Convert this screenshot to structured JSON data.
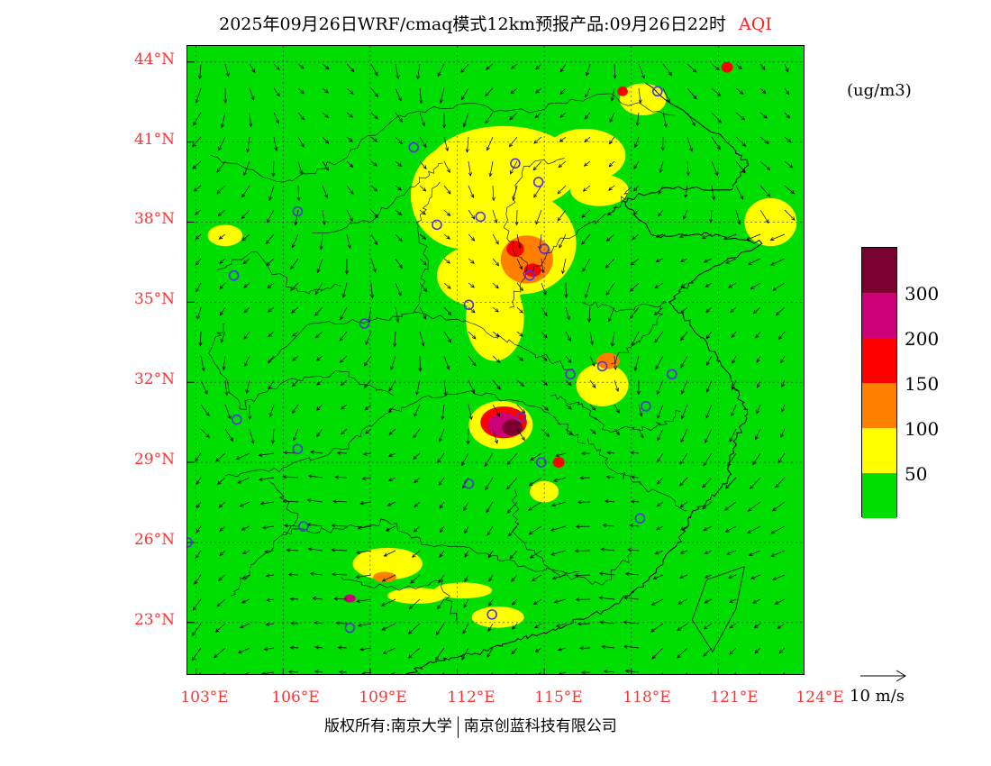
{
  "header": {
    "title": "2025年09月26日WRF/cmaq模式12km预报产品:09月26日22时",
    "variable": "AQI"
  },
  "map": {
    "lat_labels": [
      "44°N",
      "41°N",
      "38°N",
      "35°N",
      "32°N",
      "29°N",
      "26°N",
      "23°N"
    ],
    "lon_labels": [
      "103°E",
      "106°E",
      "109°E",
      "112°E",
      "115°E",
      "118°E",
      "121°E",
      "124°E"
    ],
    "lat_range": [
      21.0,
      44.6
    ],
    "lon_range": [
      102.7,
      124.0
    ],
    "lat_ticks": [
      44,
      41,
      38,
      35,
      32,
      29,
      26,
      23
    ],
    "lon_ticks": [
      103,
      106,
      109,
      112,
      115,
      118,
      121,
      124
    ],
    "cities": [
      {
        "lat": 40.8,
        "lon": 110.5
      },
      {
        "lat": 40.2,
        "lon": 114.0
      },
      {
        "lat": 39.5,
        "lon": 114.8
      },
      {
        "lat": 38.2,
        "lon": 112.8
      },
      {
        "lat": 37.9,
        "lon": 111.3
      },
      {
        "lat": 37.0,
        "lon": 115.0
      },
      {
        "lat": 36.0,
        "lon": 114.5
      },
      {
        "lat": 34.9,
        "lon": 112.4
      },
      {
        "lat": 34.2,
        "lon": 108.8
      },
      {
        "lat": 36.0,
        "lon": 104.3
      },
      {
        "lat": 38.4,
        "lon": 106.5
      },
      {
        "lat": 42.9,
        "lon": 118.9
      },
      {
        "lat": 32.3,
        "lon": 115.9
      },
      {
        "lat": 32.6,
        "lon": 117.0
      },
      {
        "lat": 32.3,
        "lon": 119.4
      },
      {
        "lat": 31.1,
        "lon": 118.5
      },
      {
        "lat": 30.7,
        "lon": 114.2
      },
      {
        "lat": 30.6,
        "lon": 104.4
      },
      {
        "lat": 29.5,
        "lon": 106.5
      },
      {
        "lat": 29.0,
        "lon": 114.9
      },
      {
        "lat": 28.2,
        "lon": 112.4
      },
      {
        "lat": 26.6,
        "lon": 106.7
      },
      {
        "lat": 26.0,
        "lon": 102.7
      },
      {
        "lat": 26.9,
        "lon": 118.3
      },
      {
        "lat": 23.3,
        "lon": 113.2
      },
      {
        "lat": 22.8,
        "lon": 108.3
      }
    ],
    "pollution": [
      {
        "lat": 40.0,
        "lon": 113.6,
        "rx": 2.6,
        "ry": 1.6,
        "level": 1
      },
      {
        "lat": 39.0,
        "lon": 112.2,
        "rx": 1.8,
        "ry": 2.0,
        "level": 1
      },
      {
        "lat": 37.2,
        "lon": 114.2,
        "rx": 1.9,
        "ry": 1.9,
        "level": 1
      },
      {
        "lat": 36.0,
        "lon": 112.9,
        "rx": 1.6,
        "ry": 1.2,
        "level": 1
      },
      {
        "lat": 34.4,
        "lon": 113.3,
        "rx": 1.0,
        "ry": 1.6,
        "level": 1
      },
      {
        "lat": 40.5,
        "lon": 116.4,
        "rx": 1.4,
        "ry": 1.0,
        "level": 1
      },
      {
        "lat": 39.2,
        "lon": 116.9,
        "rx": 1.0,
        "ry": 0.6,
        "level": 1
      },
      {
        "lat": 37.5,
        "lon": 104.0,
        "rx": 0.6,
        "ry": 0.4,
        "level": 1
      },
      {
        "lat": 38.0,
        "lon": 122.8,
        "rx": 0.9,
        "ry": 0.9,
        "level": 1
      },
      {
        "lat": 31.9,
        "lon": 117.0,
        "rx": 0.9,
        "ry": 0.8,
        "level": 1
      },
      {
        "lat": 30.4,
        "lon": 113.5,
        "rx": 1.1,
        "ry": 0.9,
        "level": 1
      },
      {
        "lat": 25.2,
        "lon": 109.6,
        "rx": 1.2,
        "ry": 0.6,
        "level": 1
      },
      {
        "lat": 24.0,
        "lon": 110.6,
        "rx": 1.0,
        "ry": 0.3,
        "level": 1
      },
      {
        "lat": 24.2,
        "lon": 112.2,
        "rx": 1.0,
        "ry": 0.3,
        "level": 1
      },
      {
        "lat": 23.2,
        "lon": 113.4,
        "rx": 0.9,
        "ry": 0.4,
        "level": 1
      },
      {
        "lat": 27.9,
        "lon": 115.0,
        "rx": 0.5,
        "ry": 0.4,
        "level": 1
      },
      {
        "lat": 42.6,
        "lon": 118.4,
        "rx": 0.8,
        "ry": 0.6,
        "level": 1
      },
      {
        "lat": 36.6,
        "lon": 114.4,
        "rx": 0.9,
        "ry": 0.9,
        "level": 2
      },
      {
        "lat": 32.8,
        "lon": 117.2,
        "rx": 0.4,
        "ry": 0.3,
        "level": 2
      },
      {
        "lat": 24.7,
        "lon": 109.5,
        "rx": 0.4,
        "ry": 0.2,
        "level": 2
      },
      {
        "lat": 30.5,
        "lon": 113.6,
        "rx": 0.8,
        "ry": 0.6,
        "level": 3
      },
      {
        "lat": 37.0,
        "lon": 114.0,
        "rx": 0.3,
        "ry": 0.3,
        "level": 3
      },
      {
        "lat": 36.2,
        "lon": 114.6,
        "rx": 0.3,
        "ry": 0.25,
        "level": 3
      },
      {
        "lat": 43.8,
        "lon": 121.3,
        "rx": 0.2,
        "ry": 0.2,
        "level": 3
      },
      {
        "lat": 42.9,
        "lon": 117.7,
        "rx": 0.18,
        "ry": 0.18,
        "level": 3
      },
      {
        "lat": 29.0,
        "lon": 115.5,
        "rx": 0.2,
        "ry": 0.2,
        "level": 3
      },
      {
        "lat": 30.4,
        "lon": 113.6,
        "rx": 0.55,
        "ry": 0.45,
        "level": 4
      },
      {
        "lat": 23.9,
        "lon": 108.3,
        "rx": 0.2,
        "ry": 0.15,
        "level": 4
      },
      {
        "lat": 30.3,
        "lon": 113.9,
        "rx": 0.35,
        "ry": 0.3,
        "level": 5
      }
    ],
    "level_colors": [
      "#00dd00",
      "#ffff00",
      "#ff8000",
      "#ff0000",
      "#cc0077",
      "#7a0030"
    ]
  },
  "legend": {
    "unit": "(ug/m3)",
    "levels": [
      {
        "label": "50",
        "color": "#00dd00"
      },
      {
        "label": "100",
        "color": "#ffff00"
      },
      {
        "label": "150",
        "color": "#ff8000"
      },
      {
        "label": "200",
        "color": "#ff0000"
      },
      {
        "label": "300",
        "color": "#cc0077"
      },
      {
        "label": "",
        "color": "#7a0030"
      }
    ]
  },
  "vector_reference": {
    "label": "10 m/s"
  },
  "footer": {
    "copyright_left": "版权所有:南京大学",
    "copyright_right": "南京创蓝科技有限公司"
  }
}
